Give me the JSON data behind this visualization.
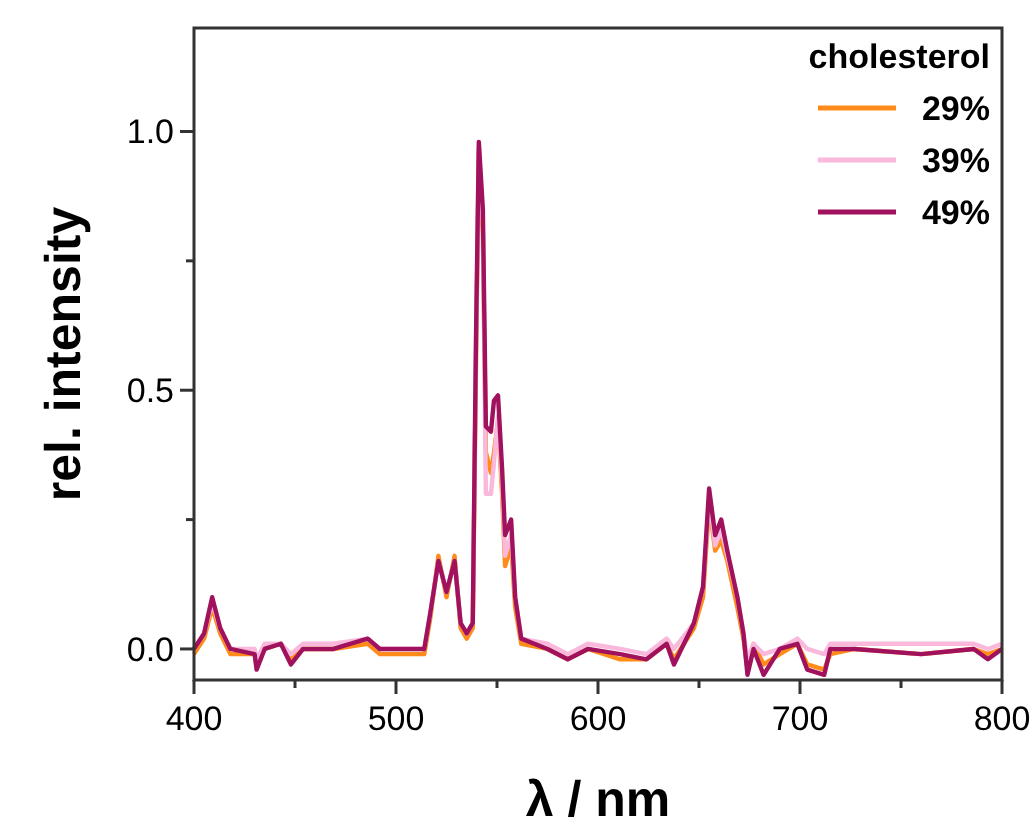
{
  "chart_data": {
    "type": "line",
    "xlabel": "λ / nm",
    "ylabel": "rel. intensity",
    "legend_title": "cholesterol",
    "legend": "top right",
    "grid": false,
    "line_style": "solid",
    "xlim": [
      400,
      800
    ],
    "ylim": [
      -0.06,
      1.2
    ],
    "xticks": [
      400,
      {
        "value": 450,
        "label": null
      },
      500,
      {
        "value": 550,
        "label": null
      },
      600,
      {
        "value": 650,
        "label": null
      },
      700,
      {
        "value": 750,
        "label": null
      },
      800
    ],
    "yticks": [
      {
        "value": 0,
        "label": "0.0"
      },
      {
        "value": 0.25,
        "label": null
      },
      {
        "value": 0.5,
        "label": "0.5"
      },
      {
        "value": 0.75,
        "label": null
      },
      {
        "value": 1,
        "label": "1.0"
      }
    ],
    "x": [
      400,
      405,
      409,
      413,
      418,
      430,
      431,
      435,
      443,
      448,
      454,
      469,
      486,
      492,
      514,
      517,
      521,
      525,
      529,
      532,
      535,
      538,
      539.6,
      541,
      543,
      544.5,
      547,
      548.5,
      550.5,
      552.5,
      554,
      557,
      559,
      562,
      575,
      585,
      595,
      611,
      624,
      634,
      637.6,
      647.5,
      652,
      655,
      658,
      661,
      664,
      669,
      672,
      674,
      677,
      682,
      690,
      698.7,
      703.6,
      712,
      715,
      727,
      760,
      786,
      793,
      800
    ],
    "series": [
      {
        "name": "29%",
        "color": "#ff8c1a",
        "values": [
          -0.01,
          0.02,
          0.08,
          0.03,
          -0.01,
          -0.01,
          -0.03,
          0,
          0.01,
          -0.02,
          0,
          0,
          0.01,
          -0.01,
          -0.01,
          0.06,
          0.18,
          0.1,
          0.18,
          0.04,
          0.02,
          0.04,
          0.55,
          0.96,
          0.8,
          0.38,
          0.34,
          0.38,
          0.44,
          0.3,
          0.16,
          0.2,
          0.08,
          0.01,
          0,
          -0.02,
          0,
          -0.02,
          -0.02,
          0.01,
          -0.02,
          0.04,
          0.1,
          0.28,
          0.19,
          0.21,
          0.17,
          0.08,
          0.02,
          -0.04,
          0.01,
          -0.03,
          -0.01,
          0.01,
          -0.03,
          -0.04,
          -0.01,
          0,
          -0.01,
          0,
          -0.01,
          0
        ]
      },
      {
        "name": "39%",
        "color": "#f9b8dc",
        "values": [
          0,
          0.03,
          0.09,
          0.04,
          0,
          0,
          -0.02,
          0.01,
          0.01,
          -0.01,
          0.01,
          0.01,
          0.02,
          0,
          0,
          0.07,
          0.17,
          0.11,
          0.17,
          0.05,
          0.03,
          0.05,
          0.58,
          0.97,
          0.82,
          0.3,
          0.3,
          0.36,
          0.45,
          0.32,
          0.18,
          0.22,
          0.1,
          0.02,
          0.01,
          -0.01,
          0.01,
          0,
          -0.01,
          0.02,
          0,
          0.05,
          0.12,
          0.29,
          0.2,
          0.23,
          0.18,
          0.1,
          0.03,
          -0.02,
          0.01,
          -0.01,
          0,
          0.02,
          0,
          -0.01,
          0.01,
          0.01,
          0.01,
          0.01,
          0,
          0.01
        ]
      },
      {
        "name": "49%",
        "color": "#a0125e",
        "values": [
          0,
          0.03,
          0.1,
          0.04,
          0,
          -0.01,
          -0.04,
          0,
          0.01,
          -0.03,
          0,
          0,
          0.02,
          0,
          0,
          0.07,
          0.17,
          0.11,
          0.17,
          0.05,
          0.03,
          0.05,
          0.6,
          0.98,
          0.85,
          0.43,
          0.42,
          0.48,
          0.49,
          0.35,
          0.22,
          0.25,
          0.1,
          0.02,
          0,
          -0.02,
          0,
          -0.01,
          -0.02,
          0.01,
          -0.03,
          0.05,
          0.12,
          0.31,
          0.22,
          0.25,
          0.19,
          0.1,
          0.03,
          -0.05,
          0,
          -0.05,
          0,
          0.01,
          -0.04,
          -0.05,
          0,
          0,
          -0.01,
          0,
          -0.02,
          0
        ]
      }
    ]
  }
}
